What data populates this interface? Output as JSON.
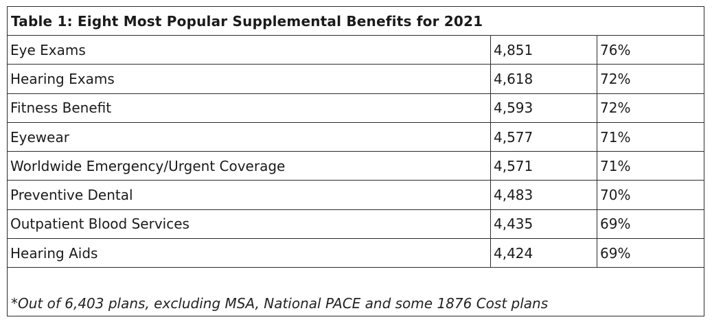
{
  "table": {
    "title": "Table 1: Eight Most Popular Supplemental Benefits for 2021",
    "rows": [
      {
        "benefit": "Eye Exams",
        "plans": "4,851",
        "percent": "76%"
      },
      {
        "benefit": "Hearing Exams",
        "plans": "4,618",
        "percent": "72%"
      },
      {
        "benefit": "Fitness Benefit",
        "plans": "4,593",
        "percent": "72%"
      },
      {
        "benefit": "Eyewear",
        "plans": "4,577",
        "percent": "71%"
      },
      {
        "benefit": "Worldwide Emergency/Urgent Coverage",
        "plans": "4,571",
        "percent": "71%"
      },
      {
        "benefit": "Preventive Dental",
        "plans": "4,483",
        "percent": "70%"
      },
      {
        "benefit": "Outpatient Blood Services",
        "plans": "4,435",
        "percent": "69%"
      },
      {
        "benefit": "Hearing Aids",
        "plans": "4,424",
        "percent": "69%"
      }
    ],
    "footnote": "*Out of 6,403 plans, excluding MSA, National PACE and some 1876 Cost plans"
  }
}
